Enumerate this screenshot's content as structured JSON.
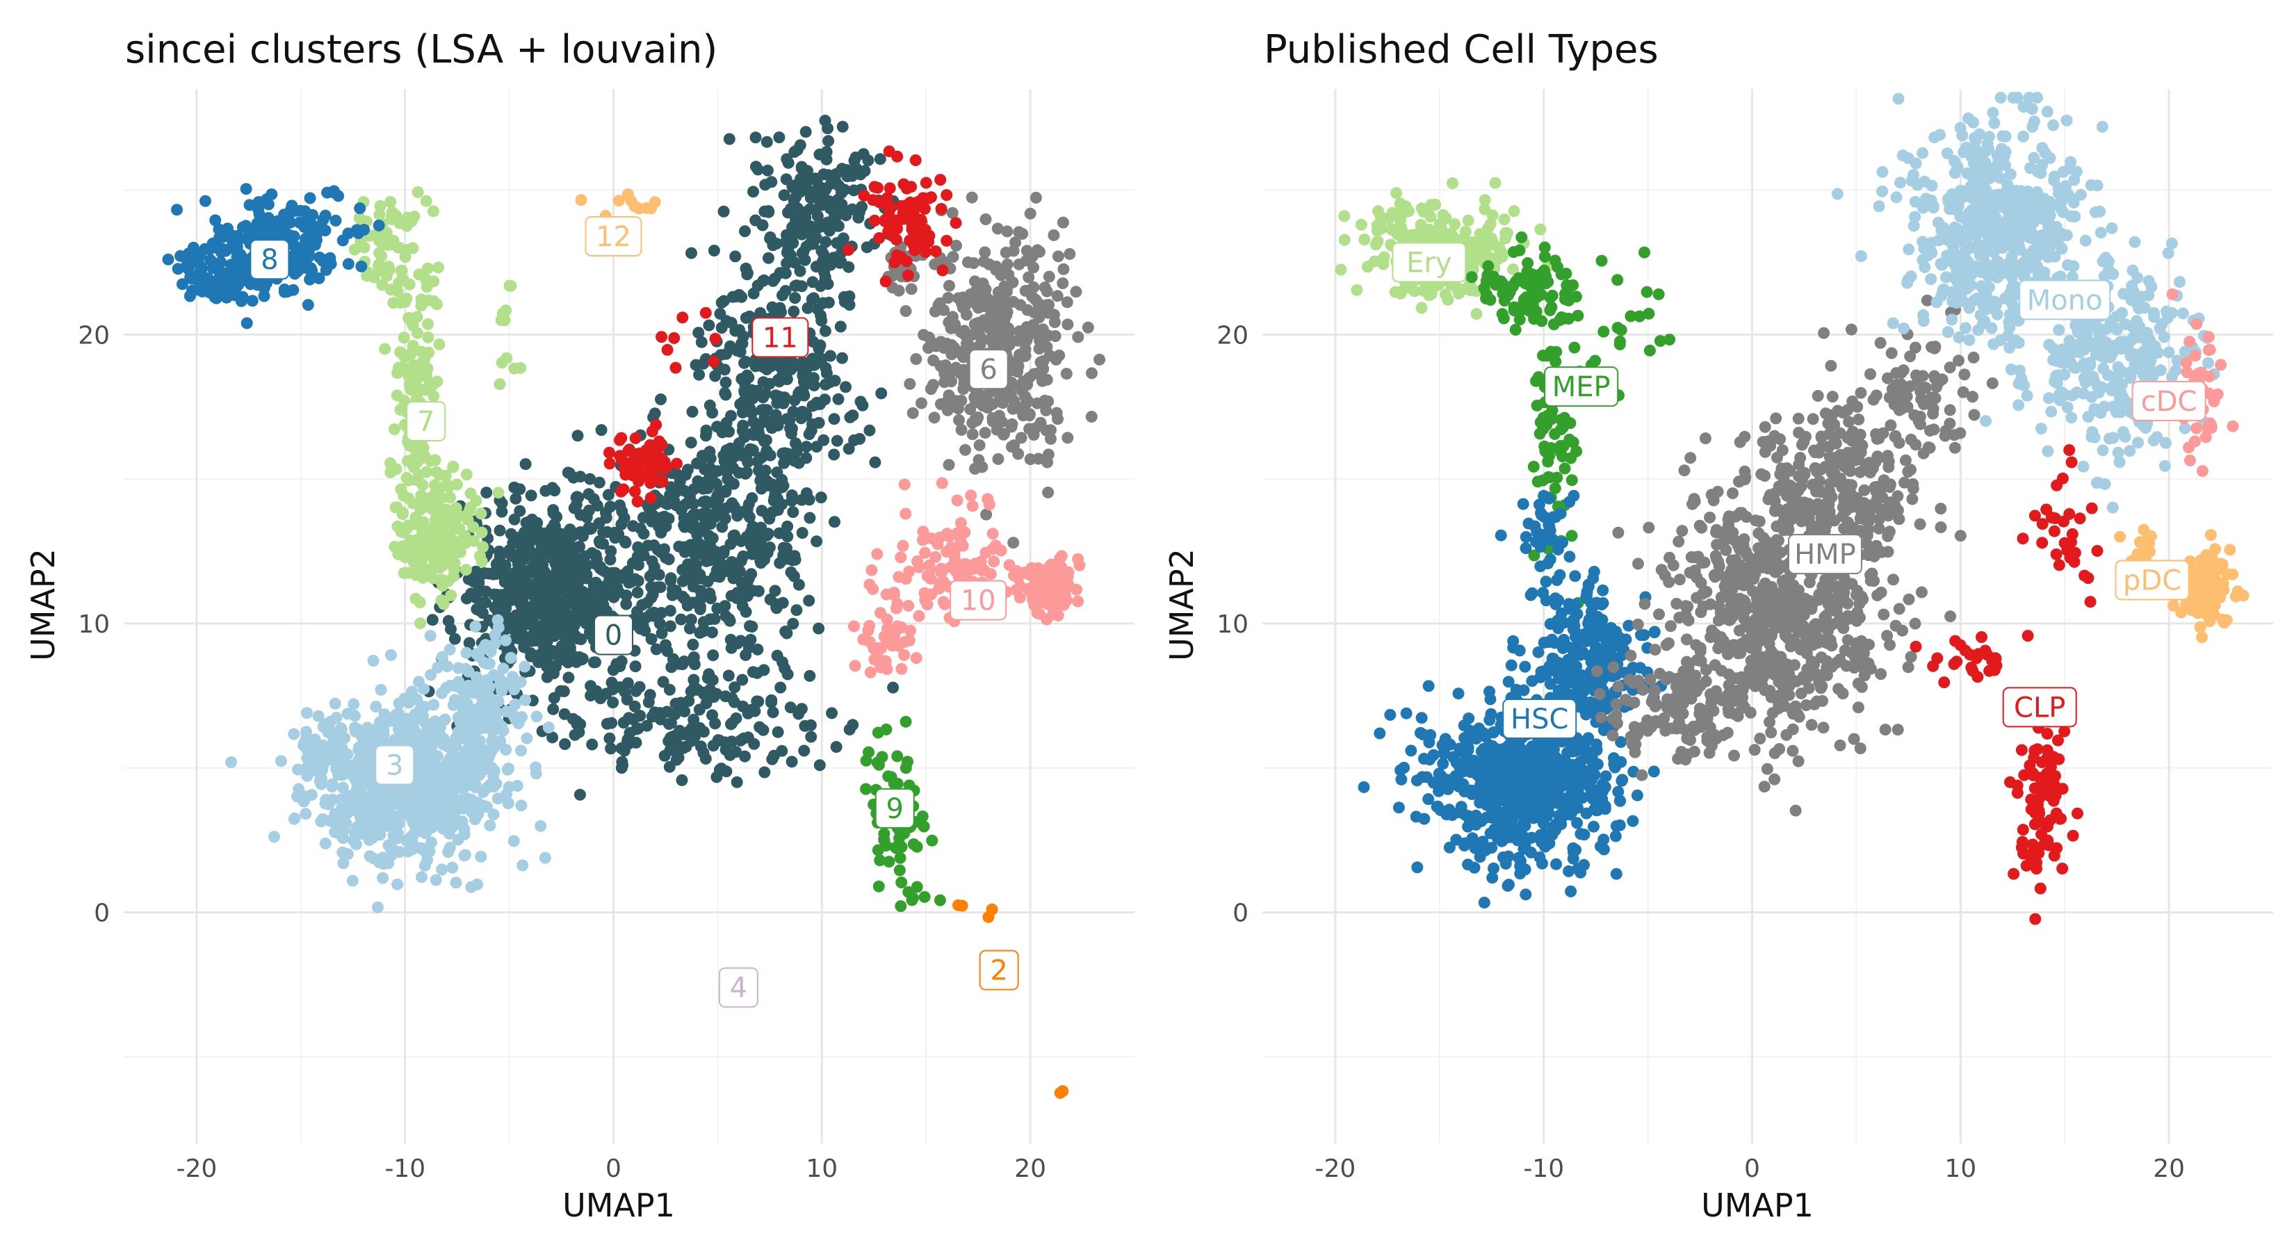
{
  "chart_data": [
    {
      "type": "scatter",
      "title": "sincei clusters (LSA + louvain)",
      "xlabel": "UMAP1",
      "ylabel": "UMAP2",
      "xlim": [
        -23.5,
        25
      ],
      "ylim": [
        -8,
        28.5
      ],
      "xticks": [
        -20,
        -10,
        0,
        10,
        20
      ],
      "yticks": [
        0,
        10,
        20
      ],
      "x_tick_labels": [
        "-20",
        "-10",
        "0",
        "10",
        "20"
      ],
      "y_tick_labels": [
        "0",
        "10",
        "20"
      ],
      "grid": true,
      "legend": "none (cluster labels placed on plot)",
      "groups": [
        {
          "label": "0",
          "color": "#2F5A63",
          "center": [
            0,
            9.6
          ],
          "blobs": [
            [
              -3,
              11,
              3.0,
              2.2,
              620
            ],
            [
              5,
              13,
              3.0,
              3.0,
              420
            ],
            [
              8,
              19,
              2.5,
              3.0,
              300
            ],
            [
              10,
              24.5,
              2.2,
              1.8,
              170
            ],
            [
              4,
              6.5,
              4.0,
              1.2,
              160
            ]
          ]
        },
        {
          "label": "2",
          "color": "#FF7F00",
          "center": [
            18.5,
            -2
          ],
          "blobs": [
            [
              16.5,
              0.4,
              0.2,
              0.2,
              2
            ],
            [
              18,
              -0.1,
              0.2,
              0.2,
              2
            ],
            [
              21.5,
              -6.4,
              0.2,
              0.2,
              2
            ]
          ]
        },
        {
          "label": "3",
          "color": "#A6CEE3",
          "center": [
            -10.5,
            5.1
          ],
          "blobs": [
            [
              -10,
              4.5,
              3.0,
              1.8,
              700
            ],
            [
              -6.5,
              7.5,
              1.5,
              1.4,
              120
            ],
            [
              -14,
              5.5,
              0.8,
              0.8,
              40
            ]
          ]
        },
        {
          "label": "4",
          "color": "#CAB2D6",
          "center": [
            6,
            -2.6
          ],
          "blobs": [
            [
              6.5,
              -2.4,
              0.2,
              0.2,
              2
            ]
          ]
        },
        {
          "label": "6",
          "color": "#808080",
          "center": [
            18,
            18.8
          ],
          "blobs": [
            [
              18.5,
              19.5,
              2.2,
              2.6,
              420
            ],
            [
              14,
              22.5,
              1.0,
              0.8,
              30
            ]
          ]
        },
        {
          "label": "7",
          "color": "#B2DF8A",
          "center": [
            -9,
            17
          ],
          "blobs": [
            [
              -8.5,
              13,
              1.3,
              1.4,
              180
            ],
            [
              -9.5,
              18,
              0.8,
              3.0,
              140
            ],
            [
              -11,
              23,
              1.0,
              1.2,
              60
            ],
            [
              -5,
              20,
              0.6,
              1.5,
              12
            ]
          ]
        },
        {
          "label": "8",
          "color": "#1F78B4",
          "center": [
            -16.5,
            22.6
          ],
          "blobs": [
            [
              -16,
              23,
              2.5,
              1.1,
              230
            ],
            [
              -19,
              22,
              1.2,
              0.6,
              60
            ]
          ]
        },
        {
          "label": "9",
          "color": "#33A02C",
          "center": [
            13.5,
            3.6
          ],
          "blobs": [
            [
              13.5,
              3.5,
              1.2,
              1.6,
              60
            ],
            [
              14.5,
              0.4,
              1.0,
              0.4,
              8
            ]
          ]
        },
        {
          "label": "10",
          "color": "#FB9A99",
          "center": [
            17.5,
            10.8
          ],
          "blobs": [
            [
              21,
              11.2,
              1.0,
              0.6,
              120
            ],
            [
              16,
              12,
              1.8,
              1.4,
              90
            ],
            [
              13,
              9.5,
              1.0,
              0.9,
              40
            ]
          ]
        },
        {
          "label": "11",
          "color": "#E31A1C",
          "center": [
            8,
            19.9
          ],
          "blobs": [
            [
              14,
              24,
              1.3,
              1.1,
              80
            ],
            [
              1.5,
              15.5,
              0.9,
              0.7,
              70
            ],
            [
              3,
              20,
              1.0,
              1.0,
              8
            ]
          ]
        },
        {
          "label": "12",
          "color": "#FDBF6F",
          "center": [
            0,
            23.4
          ],
          "blobs": [
            [
              0.5,
              24.5,
              1.2,
              0.3,
              10
            ]
          ]
        }
      ]
    },
    {
      "type": "scatter",
      "title": "Published Cell Types",
      "xlabel": "UMAP1",
      "ylabel": "UMAP2",
      "xlim": [
        -23.5,
        25
      ],
      "ylim": [
        -8,
        28.5
      ],
      "xticks": [
        -20,
        -10,
        0,
        10,
        20
      ],
      "yticks": [
        0,
        10,
        20
      ],
      "x_tick_labels": [
        "-20",
        "-10",
        "0",
        "10",
        "20"
      ],
      "y_tick_labels": [
        "0",
        "10",
        "20"
      ],
      "grid": true,
      "legend": "none (cell type labels placed on plot)",
      "groups": [
        {
          "label": "Ery",
          "color": "#B2DF8A",
          "center": [
            -15.5,
            22.5
          ],
          "blobs": [
            [
              -15,
              23,
              2.5,
              1.2,
              240
            ]
          ]
        },
        {
          "label": "MEP",
          "color": "#33A02C",
          "center": [
            -8.2,
            18.2
          ],
          "blobs": [
            [
              -10.5,
              21.5,
              1.6,
              0.9,
              90
            ],
            [
              -9.5,
              16,
              0.7,
              2.5,
              70
            ],
            [
              -6,
              20,
              1.2,
              1.2,
              20
            ]
          ]
        },
        {
          "label": "HSC",
          "color": "#1F78B4",
          "center": [
            -10.2,
            6.7
          ],
          "blobs": [
            [
              -11,
              4.5,
              3.0,
              1.8,
              650
            ],
            [
              -8,
              8.5,
              2.0,
              2.0,
              250
            ],
            [
              -10,
              13,
              0.8,
              1.0,
              40
            ]
          ]
        },
        {
          "label": "HMP",
          "color": "#808080",
          "center": [
            3.5,
            12.4
          ],
          "blobs": [
            [
              1,
              10.5,
              3.5,
              3.0,
              650
            ],
            [
              4,
              15,
              2.5,
              2.2,
              250
            ],
            [
              8,
              18,
              1.5,
              1.5,
              80
            ],
            [
              -4,
              7,
              2.0,
              1.2,
              100
            ]
          ]
        },
        {
          "label": "Mono",
          "color": "#A6CEE3",
          "center": [
            15,
            21.2
          ],
          "blobs": [
            [
              12,
              23.5,
              2.8,
              2.3,
              500
            ],
            [
              17.5,
              19,
              2.5,
              2.2,
              280
            ],
            [
              11,
              26,
              1.0,
              0.9,
              30
            ]
          ]
        },
        {
          "label": "cDC",
          "color": "#FB9A99",
          "center": [
            20,
            17.7
          ],
          "blobs": [
            [
              21.5,
              18,
              0.8,
              2.0,
              40
            ]
          ]
        },
        {
          "label": "pDC",
          "color": "#FDBF6F",
          "center": [
            19.2,
            11.5
          ],
          "blobs": [
            [
              21.8,
              11.3,
              0.8,
              0.8,
              110
            ],
            [
              19,
              12.5,
              0.8,
              0.6,
              15
            ]
          ]
        },
        {
          "label": "CLP",
          "color": "#E31A1C",
          "center": [
            13.8,
            7.1
          ],
          "blobs": [
            [
              13.8,
              4,
              0.8,
              1.8,
              90
            ],
            [
              10,
              8.8,
              1.2,
              0.5,
              25
            ],
            [
              15,
              13,
              1.3,
              1.6,
              30
            ]
          ]
        }
      ]
    }
  ]
}
